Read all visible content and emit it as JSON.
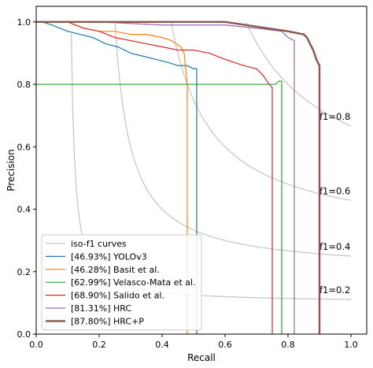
{
  "chart_data": {
    "type": "line",
    "title": "",
    "xlabel": "Recall",
    "ylabel": "Precision",
    "xlim": [
      0.0,
      1.05
    ],
    "ylim": [
      0.0,
      1.05
    ],
    "xticks": [
      0.0,
      0.2,
      0.4,
      0.6,
      0.8,
      1.0
    ],
    "xtick_labels": [
      "0.0",
      "0.2",
      "0.4",
      "0.6",
      "0.8",
      "1.0"
    ],
    "yticks": [
      0.0,
      0.2,
      0.4,
      0.6,
      0.8,
      1.0
    ],
    "ytick_labels": [
      "0.0",
      "0.2",
      "0.4",
      "0.6",
      "0.8",
      "1.0"
    ],
    "grid": false,
    "legend_position": "lower-left",
    "iso_f1": {
      "name": "iso-f1 curves",
      "color": "#c8c8c8",
      "levels": [
        0.2,
        0.4,
        0.6,
        0.8
      ],
      "labels": [
        "f1=0.2",
        "f1=0.4",
        "f1=0.6",
        "f1=0.8"
      ]
    },
    "series": [
      {
        "name": "[46.93%] YOLOv3",
        "color": "#1f77b4",
        "x": [
          0.0,
          0.02,
          0.05,
          0.1,
          0.14,
          0.18,
          0.22,
          0.26,
          0.3,
          0.34,
          0.38,
          0.42,
          0.45,
          0.48,
          0.5,
          0.51,
          0.51,
          0.51
        ],
        "y": [
          1.0,
          1.0,
          0.99,
          0.97,
          0.96,
          0.95,
          0.93,
          0.92,
          0.9,
          0.89,
          0.88,
          0.87,
          0.86,
          0.86,
          0.85,
          0.85,
          0.8,
          0.0
        ]
      },
      {
        "name": "[46.28%] Basit et al.",
        "color": "#ff7f0e",
        "x": [
          0.0,
          0.1,
          0.15,
          0.2,
          0.25,
          0.3,
          0.35,
          0.4,
          0.43,
          0.46,
          0.47,
          0.48,
          0.48
        ],
        "y": [
          1.0,
          1.0,
          0.98,
          0.97,
          0.97,
          0.96,
          0.96,
          0.95,
          0.94,
          0.92,
          0.9,
          0.8,
          0.0
        ]
      },
      {
        "name": "[62.99%] Velasco-Mata et al.",
        "color": "#2ca02c",
        "x": [
          0.0,
          0.5,
          0.76,
          0.77,
          0.78,
          0.78
        ],
        "y": [
          0.8,
          0.8,
          0.8,
          0.81,
          0.81,
          0.0
        ]
      },
      {
        "name": "[68.90%] Salido et al.",
        "color": "#d62728",
        "x": [
          0.0,
          0.1,
          0.15,
          0.2,
          0.25,
          0.3,
          0.35,
          0.4,
          0.45,
          0.5,
          0.55,
          0.6,
          0.63,
          0.66,
          0.7,
          0.72,
          0.74,
          0.75,
          0.75
        ],
        "y": [
          1.0,
          1.0,
          0.98,
          0.97,
          0.95,
          0.94,
          0.93,
          0.92,
          0.91,
          0.91,
          0.9,
          0.88,
          0.87,
          0.86,
          0.85,
          0.83,
          0.8,
          0.79,
          0.0
        ]
      },
      {
        "name": "[81.31%] HRC",
        "color": "#9467bd",
        "x": [
          0.0,
          0.2,
          0.4,
          0.6,
          0.7,
          0.78,
          0.8,
          0.82,
          0.82
        ],
        "y": [
          1.0,
          1.0,
          0.99,
          0.99,
          0.98,
          0.97,
          0.95,
          0.94,
          0.0
        ]
      },
      {
        "name": "[87.80%] HRC+P",
        "color": "#8c564b",
        "x": [
          0.0,
          0.6,
          0.8,
          0.85,
          0.86,
          0.87,
          0.88,
          0.89,
          0.9,
          0.9
        ],
        "y": [
          1.0,
          1.0,
          0.97,
          0.96,
          0.95,
          0.93,
          0.91,
          0.88,
          0.86,
          0.0
        ]
      }
    ]
  }
}
